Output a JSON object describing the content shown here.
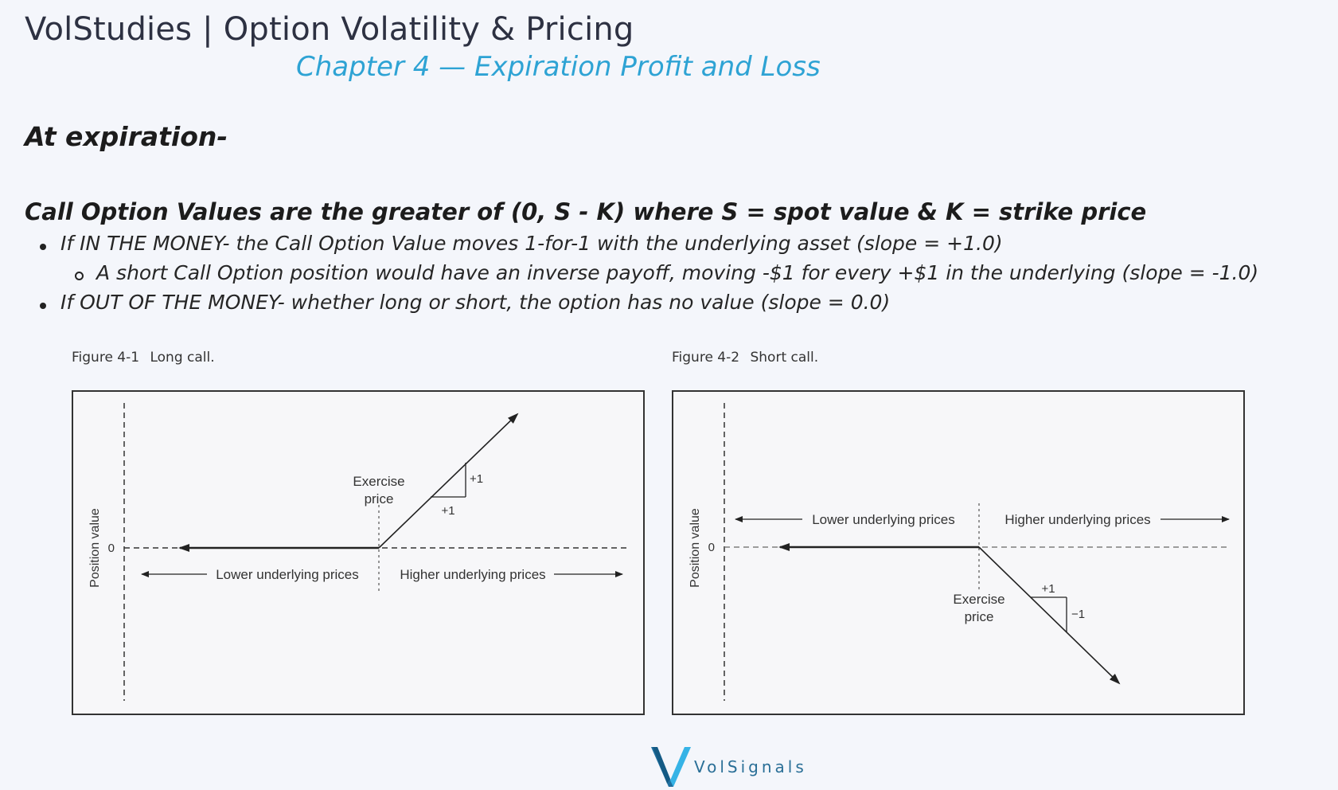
{
  "header": {
    "title": "VolStudies | Option Volatility & Pricing",
    "subtitle": "Chapter 4 — Expiration Profit and Loss"
  },
  "content": {
    "section_heading": "At expiration-",
    "rule_heading": "Call Option Values are the greater of (0, S - K) where S = spot value & K = strike price",
    "bullets": [
      "If IN THE MONEY- the Call Option Value moves 1-for-1 with the underlying asset (slope = +1.0)",
      "A short Call Option position would have an inverse payoff, moving -$1 for every +$1 in the underlying (slope = -1.0)",
      "If OUT OF THE MONEY- whether long or short, the option has no value (slope = 0.0)"
    ]
  },
  "figures": [
    {
      "number": "Figure 4-1",
      "caption": "Long call.",
      "y_axis_label": "Position value",
      "zero_label": "0",
      "strike_label_line1": "Exercise",
      "strike_label_line2": "price",
      "left_arrow_label": "Lower underlying prices",
      "right_arrow_label": "Higher underlying prices",
      "slope_run_label": "+1",
      "slope_rise_label": "+1"
    },
    {
      "number": "Figure 4-2",
      "caption": "Short call.",
      "y_axis_label": "Position value",
      "zero_label": "0",
      "strike_label_line1": "Exercise",
      "strike_label_line2": "price",
      "left_arrow_label": "Lower underlying prices",
      "right_arrow_label": "Higher underlying prices",
      "slope_run_label": "+1",
      "slope_rise_label": "−1"
    }
  ],
  "footer": {
    "logo_text": "VolSignals"
  },
  "colors": {
    "title": "#2d3142",
    "subtitle_accent": "#2ea3d4",
    "logo_blue": "#2a6f97"
  }
}
